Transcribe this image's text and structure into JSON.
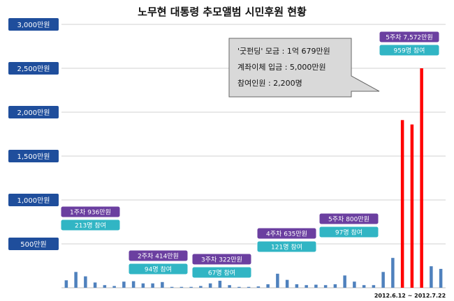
{
  "title": "노무현 대통령 추모앨범 시민후원 현황",
  "chart_data": {
    "type": "bar",
    "ylim": [
      0,
      3000
    ],
    "y_ticks": [
      "500만원",
      "1,000만원",
      "1,500만원",
      "2,000만원",
      "2,500만원",
      "3,000만원"
    ],
    "grid": true,
    "normal_color": "#4f81bd",
    "highlight_color": "#ff0000",
    "values": [
      85,
      180,
      130,
      60,
      30,
      20,
      70,
      75,
      50,
      50,
      65,
      10,
      10,
      10,
      20,
      50,
      80,
      30,
      10,
      10,
      15,
      40,
      160,
      90,
      40,
      30,
      35,
      30,
      40,
      140,
      70,
      30,
      30,
      180,
      340,
      1910,
      1860,
      2500,
      245,
      215
    ],
    "highlight": [
      false,
      false,
      false,
      false,
      false,
      false,
      false,
      false,
      false,
      false,
      false,
      false,
      false,
      false,
      false,
      false,
      false,
      false,
      false,
      false,
      false,
      false,
      false,
      false,
      false,
      false,
      false,
      false,
      false,
      false,
      false,
      false,
      false,
      false,
      false,
      true,
      true,
      true,
      false,
      false
    ],
    "annotations": [
      {
        "top": "1주차 936만원",
        "bottom": "213명 참여"
      },
      {
        "top": "2주차 414만원",
        "bottom": "94명 참여"
      },
      {
        "top": "3주차 322만원",
        "bottom": "67명 참여"
      },
      {
        "top": "4주차 635만원",
        "bottom": "121명 참여"
      },
      {
        "top": "5주차 800만원",
        "bottom": "97명 참여"
      },
      {
        "top": "5주차 7,572만원",
        "bottom": "959명 참여"
      }
    ],
    "callout": {
      "lines": [
        "'굿펀딩' 모금   : 1억 679만원",
        "계좌이체 입금 : 5,000만원",
        "참여인원        :  2,200명"
      ]
    },
    "date_range": "2012.6.12  ~  2012.7.22"
  }
}
